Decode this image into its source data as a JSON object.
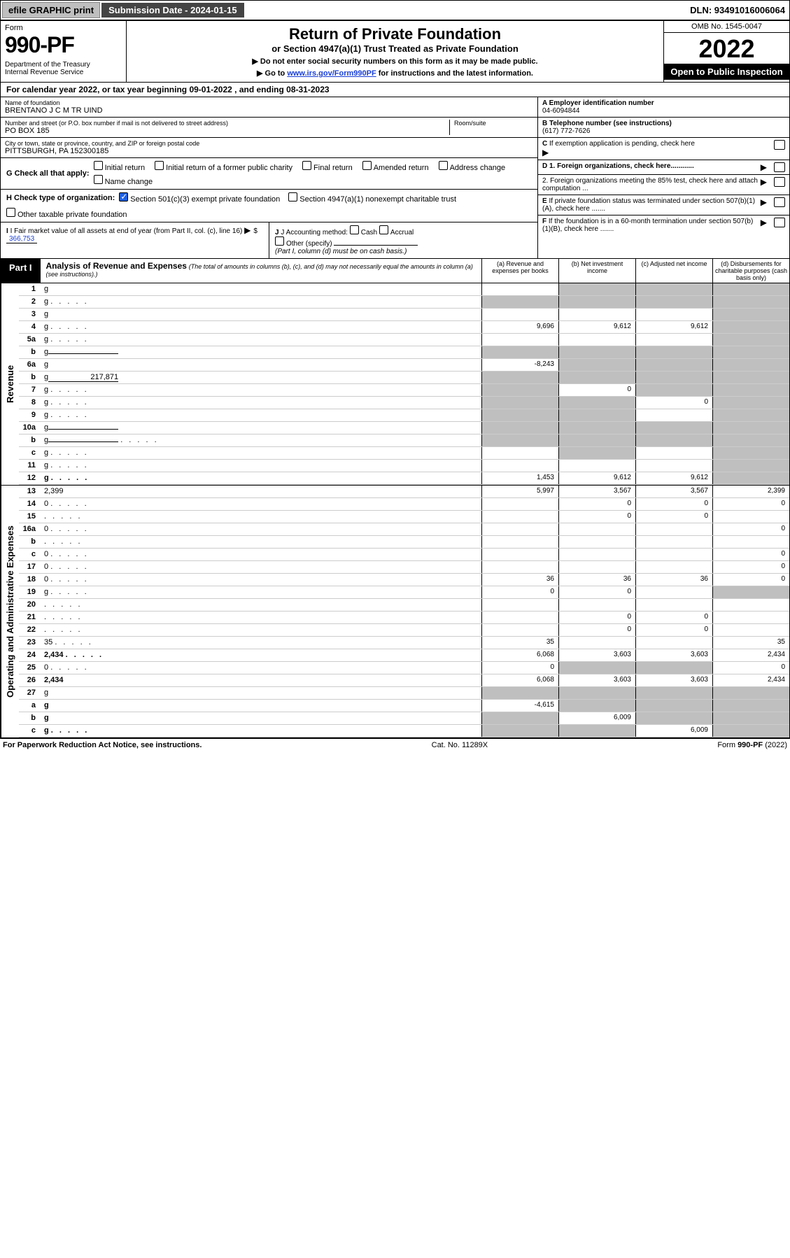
{
  "topbar": {
    "efile": "efile GRAPHIC print",
    "submission": "Submission Date - 2024-01-15",
    "dln": "DLN: 93491016006064"
  },
  "header": {
    "form_label": "Form",
    "form_num": "990-PF",
    "dept": "Department of the Treasury\nInternal Revenue Service",
    "title": "Return of Private Foundation",
    "sub1": "or Section 4947(a)(1) Trust Treated as Private Foundation",
    "sub2a": "▶ Do not enter social security numbers on this form as it may be made public.",
    "sub2b": "▶ Go to ",
    "irs_link": "www.irs.gov/Form990PF",
    "sub2c": " for instructions and the latest information.",
    "omb": "OMB No. 1545-0047",
    "year": "2022",
    "open": "Open to Public Inspection"
  },
  "calendar_line": "For calendar year 2022, or tax year beginning 09-01-2022              , and ending 08-31-2023",
  "info": {
    "name_lbl": "Name of foundation",
    "name": "BRENTANO J C M TR UIND",
    "addr_lbl": "Number and street (or P.O. box number if mail is not delivered to street address)",
    "addr": "PO BOX 185",
    "room_lbl": "Room/suite",
    "city_lbl": "City or town, state or province, country, and ZIP or foreign postal code",
    "city": "PITTSBURGH, PA  152300185",
    "a_lbl": "A Employer identification number",
    "ein": "04-6094844",
    "b_lbl": "B Telephone number (see instructions)",
    "phone": "(617) 772-7626",
    "c_lbl": "C If exemption application is pending, check here",
    "d1": "D 1. Foreign organizations, check here............",
    "d2": "2. Foreign organizations meeting the 85% test, check here and attach computation ...",
    "e_lbl": "E  If private foundation status was terminated under section 507(b)(1)(A), check here .......",
    "f_lbl": "F  If the foundation is in a 60-month termination under section 507(b)(1)(B), check here .......",
    "g_lbl": "G Check all that apply:",
    "g_opts": [
      "Initial return",
      "Initial return of a former public charity",
      "Final return",
      "Amended return",
      "Address change",
      "Name change"
    ],
    "h_lbl": "H Check type of organization:",
    "h_opts": [
      "Section 501(c)(3) exempt private foundation",
      "Section 4947(a)(1) nonexempt charitable trust",
      "Other taxable private foundation"
    ],
    "i_lbl": "I Fair market value of all assets at end of year (from Part II, col. (c), line 16)",
    "i_val": "366,753",
    "j_lbl": "J Accounting method:",
    "j_opts": [
      "Cash",
      "Accrual",
      "Other (specify)"
    ],
    "j_note": "(Part I, column (d) must be on cash basis.)"
  },
  "part1": {
    "tag": "Part I",
    "title": "Analysis of Revenue and Expenses",
    "note": "(The total of amounts in columns (b), (c), and (d) may not necessarily equal the amounts in column (a) (see instructions).)",
    "col_a": "(a)  Revenue and expenses per books",
    "col_b": "(b)  Net investment income",
    "col_c": "(c)  Adjusted net income",
    "col_d": "(d)  Disbursements for charitable purposes (cash basis only)"
  },
  "side_labels": {
    "rev": "Revenue",
    "exp": "Operating and Administrative Expenses"
  },
  "rows": [
    {
      "n": "1",
      "d": "g",
      "a": "",
      "b": "g",
      "c": "g"
    },
    {
      "n": "2",
      "d": "g",
      "ad": 1,
      "a": "g",
      "b": "g",
      "c": "g"
    },
    {
      "n": "3",
      "d": "g",
      "a": "",
      "b": "",
      "c": ""
    },
    {
      "n": "4",
      "d": "g",
      "ad": 1,
      "a": "9,696",
      "b": "9,612",
      "c": "9,612"
    },
    {
      "n": "5a",
      "d": "g",
      "ad": 1,
      "a": "",
      "b": "",
      "c": ""
    },
    {
      "n": "b",
      "d": "g",
      "ul": 1,
      "a": "g",
      "b": "g",
      "c": "g"
    },
    {
      "n": "6a",
      "d": "g",
      "a": "-8,243",
      "b": "g",
      "c": "g"
    },
    {
      "n": "b",
      "d": "g",
      "ul": 1,
      "ulv": "217,871",
      "a": "g",
      "b": "g",
      "c": "g"
    },
    {
      "n": "7",
      "d": "g",
      "ad": 1,
      "a": "g",
      "b": "0",
      "c": "g"
    },
    {
      "n": "8",
      "d": "g",
      "ad": 1,
      "a": "g",
      "b": "g",
      "c": "0"
    },
    {
      "n": "9",
      "d": "g",
      "ad": 1,
      "a": "g",
      "b": "g",
      "c": ""
    },
    {
      "n": "10a",
      "d": "g",
      "ul": 1,
      "a": "g",
      "b": "g",
      "c": "g"
    },
    {
      "n": "b",
      "d": "g",
      "ad": 1,
      "ul": 1,
      "a": "g",
      "b": "g",
      "c": "g"
    },
    {
      "n": "c",
      "d": "g",
      "ad": 1,
      "a": "",
      "b": "g",
      "c": ""
    },
    {
      "n": "11",
      "d": "g",
      "ad": 1,
      "a": "",
      "b": "",
      "c": ""
    },
    {
      "n": "12",
      "d": "g",
      "b1": 1,
      "ad": 1,
      "a": "1,453",
      "b": "9,612",
      "c": "9,612"
    }
  ],
  "exp_rows": [
    {
      "n": "13",
      "d": "2,399",
      "a": "5,997",
      "b": "3,567",
      "c": "3,567"
    },
    {
      "n": "14",
      "d": "0",
      "ad": 1,
      "a": "",
      "b": "0",
      "c": "0"
    },
    {
      "n": "15",
      "d": "",
      "ad": 1,
      "a": "",
      "b": "0",
      "c": "0"
    },
    {
      "n": "16a",
      "d": "0",
      "ad": 1,
      "a": "",
      "b": "",
      "c": ""
    },
    {
      "n": "b",
      "d": "",
      "ad": 1,
      "a": "",
      "b": "",
      "c": ""
    },
    {
      "n": "c",
      "d": "0",
      "ad": 1,
      "a": "",
      "b": "",
      "c": ""
    },
    {
      "n": "17",
      "d": "0",
      "ad": 1,
      "a": "",
      "b": "",
      "c": ""
    },
    {
      "n": "18",
      "d": "0",
      "ad": 1,
      "a": "36",
      "b": "36",
      "c": "36"
    },
    {
      "n": "19",
      "d": "g",
      "ad": 1,
      "a": "0",
      "b": "0",
      "c": ""
    },
    {
      "n": "20",
      "d": "",
      "ad": 1,
      "a": "",
      "b": "",
      "c": ""
    },
    {
      "n": "21",
      "d": "",
      "ad": 1,
      "a": "",
      "b": "0",
      "c": "0"
    },
    {
      "n": "22",
      "d": "",
      "ad": 1,
      "a": "",
      "b": "0",
      "c": "0"
    },
    {
      "n": "23",
      "d": "35",
      "ad": 1,
      "a": "35",
      "b": "",
      "c": ""
    },
    {
      "n": "24",
      "d": "2,434",
      "b1": 1,
      "ad": 1,
      "a": "6,068",
      "b": "3,603",
      "c": "3,603"
    },
    {
      "n": "25",
      "d": "0",
      "ad": 1,
      "a": "0",
      "b": "g",
      "c": "g"
    },
    {
      "n": "26",
      "d": "2,434",
      "b1": 1,
      "a": "6,068",
      "b": "3,603",
      "c": "3,603"
    },
    {
      "n": "27",
      "d": "g",
      "a": "g",
      "b": "g",
      "c": "g"
    },
    {
      "n": "a",
      "d": "g",
      "b1": 1,
      "a": "-4,615",
      "b": "g",
      "c": "g"
    },
    {
      "n": "b",
      "d": "g",
      "b1": 1,
      "a": "g",
      "b": "6,009",
      "c": "g"
    },
    {
      "n": "c",
      "d": "g",
      "b1": 1,
      "ad": 1,
      "a": "g",
      "b": "g",
      "c": "6,009"
    }
  ],
  "footer": {
    "left": "For Paperwork Reduction Act Notice, see instructions.",
    "mid": "Cat. No. 11289X",
    "right": "Form 990-PF (2022)"
  },
  "colors": {
    "grey": "#bfbfbf",
    "darkbtn": "#444444",
    "blue": "#2060e0",
    "link": "#1a3fd6"
  }
}
